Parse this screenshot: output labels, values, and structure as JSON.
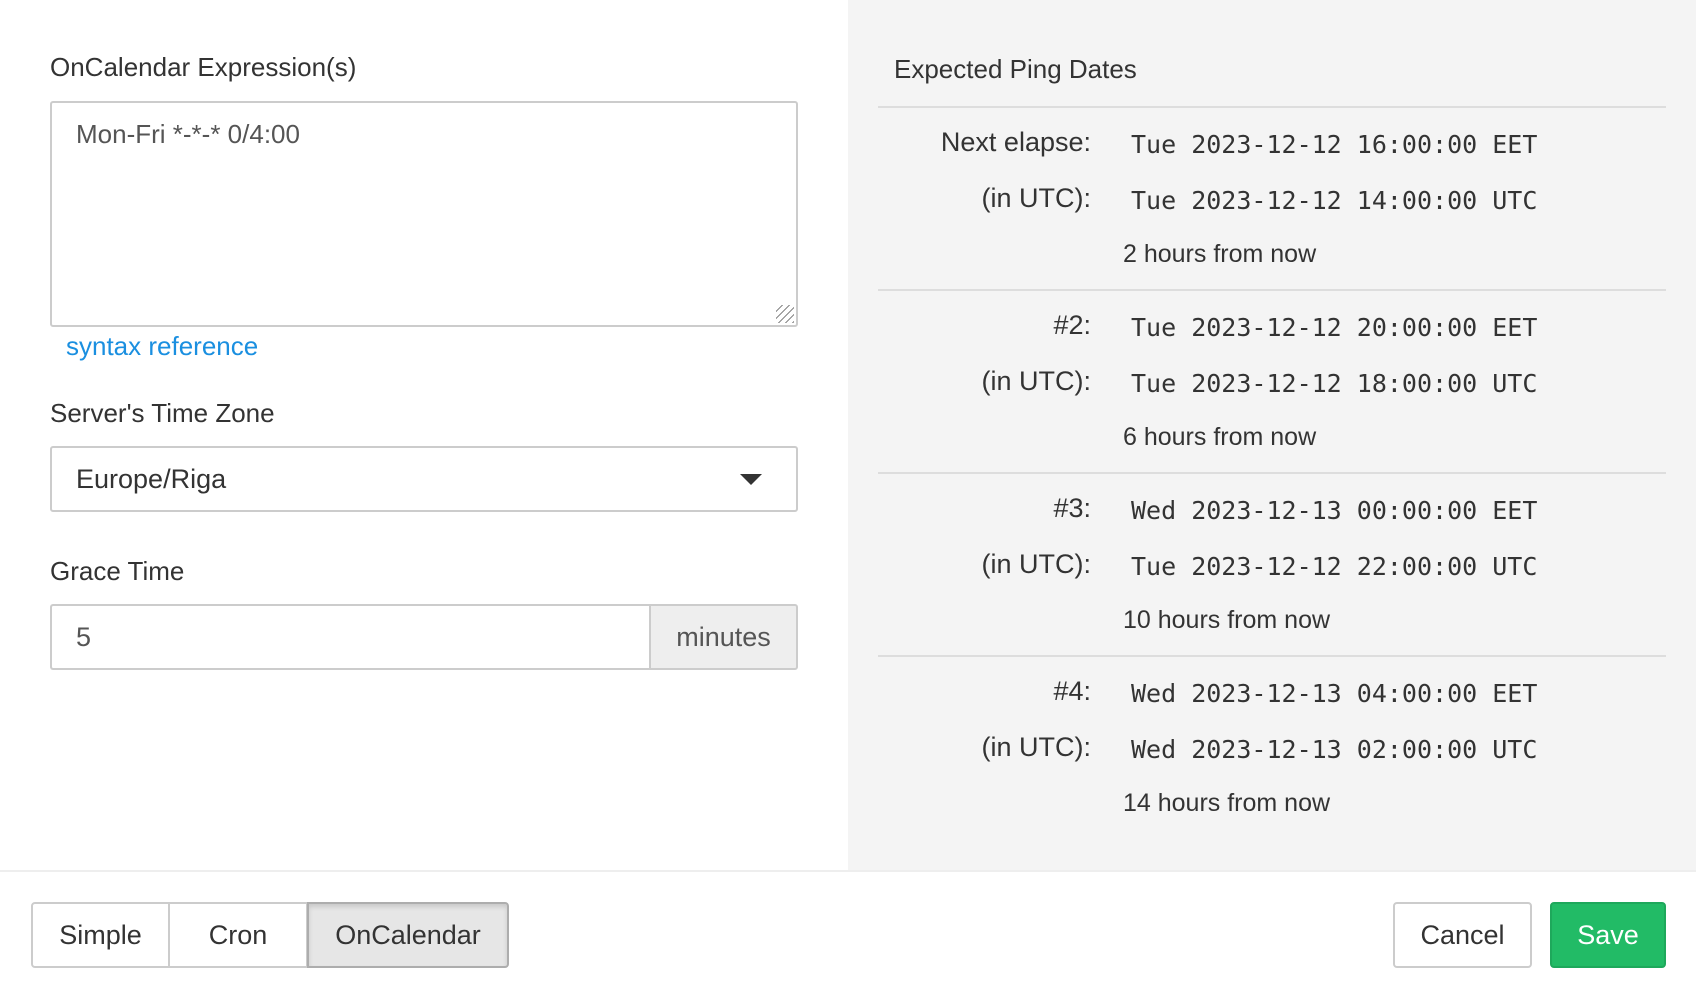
{
  "form": {
    "expression_label": "OnCalendar Expression(s)",
    "expression_value": "Mon-Fri *-*-* 0/4:00",
    "syntax_link": "syntax reference",
    "timezone_label": "Server's Time Zone",
    "timezone_value": "Europe/Riga",
    "grace_label": "Grace Time",
    "grace_value": "5",
    "grace_unit": "minutes"
  },
  "preview": {
    "title": "Expected Ping Dates",
    "entries": [
      {
        "label": "Next elapse:",
        "local": "Tue 2023-12-12 16:00:00 EET",
        "utc_label": "(in UTC):",
        "utc": "Tue 2023-12-12 14:00:00 UTC",
        "relative": "2 hours from now"
      },
      {
        "label": "#2:",
        "local": "Tue 2023-12-12 20:00:00 EET",
        "utc_label": "(in UTC):",
        "utc": "Tue 2023-12-12 18:00:00 UTC",
        "relative": "6 hours from now"
      },
      {
        "label": "#3:",
        "local": "Wed 2023-12-13 00:00:00 EET",
        "utc_label": "(in UTC):",
        "utc": "Tue 2023-12-12 22:00:00 UTC",
        "relative": "10 hours from now"
      },
      {
        "label": "#4:",
        "local": "Wed 2023-12-13 04:00:00 EET",
        "utc_label": "(in UTC):",
        "utc": "Wed 2023-12-13 02:00:00 UTC",
        "relative": "14 hours from now"
      }
    ]
  },
  "footer": {
    "modes": [
      "Simple",
      "Cron",
      "OnCalendar"
    ],
    "active_mode": "OnCalendar",
    "cancel": "Cancel",
    "save": "Save"
  },
  "colors": {
    "save": "#22bb66",
    "link": "#1a8fe0",
    "panel": "#f4f4f4"
  }
}
